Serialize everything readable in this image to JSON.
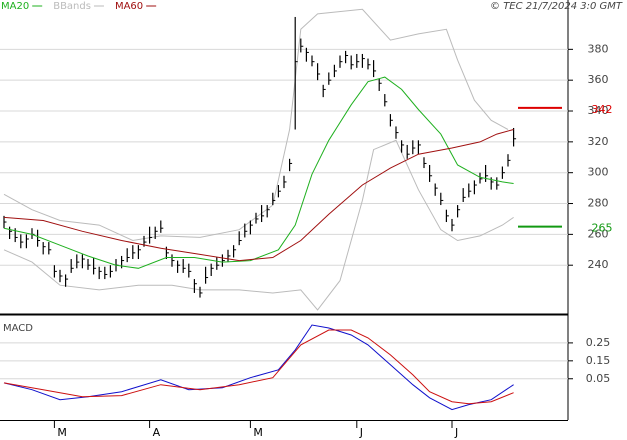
{
  "chart_data": [
    {
      "type": "ohlc",
      "annotation": "© TEC 21/7/2024 3:0 GMT",
      "categories": [
        null,
        null,
        null,
        null,
        null,
        null,
        null,
        null,
        null,
        "M",
        null,
        null,
        null,
        null,
        null,
        null,
        null,
        null,
        null,
        null,
        null,
        null,
        null,
        null,
        null,
        null,
        "A",
        null,
        null,
        null,
        null,
        null,
        null,
        null,
        null,
        null,
        null,
        null,
        null,
        null,
        null,
        null,
        null,
        null,
        "M",
        null,
        null,
        null,
        null,
        null,
        null,
        null,
        null,
        null,
        null,
        null,
        null,
        null,
        null,
        null,
        null,
        null,
        null,
        "J",
        null,
        null,
        null,
        null,
        null,
        null,
        null,
        null,
        null,
        null,
        null,
        null,
        null,
        null,
        null,
        null,
        "J",
        null,
        null,
        null,
        null,
        null,
        null,
        null,
        null,
        null,
        null,
        null
      ],
      "high": [
        272,
        265,
        264,
        260,
        260,
        264,
        263,
        255,
        255,
        240,
        237,
        234,
        244,
        247,
        247,
        244,
        245,
        239,
        239,
        240,
        244,
        246,
        251,
        253,
        253,
        259,
        265,
        265,
        269,
        252,
        247,
        243,
        244,
        241,
        231,
        226,
        239,
        241,
        245,
        247,
        250,
        253,
        262,
        267,
        269,
        274,
        279,
        279,
        287,
        292,
        298,
        309,
        401,
        387,
        381,
        376,
        371,
        357,
        365,
        370,
        376,
        379,
        376,
        377,
        377,
        374,
        373,
        361,
        351,
        338,
        330,
        321,
        318,
        321,
        321,
        310,
        305,
        293,
        287,
        276,
        270,
        279,
        290,
        293,
        295,
        300,
        305,
        297,
        297,
        304,
        312,
        329
      ],
      "low": [
        264,
        257,
        255,
        251,
        251,
        257,
        252,
        247,
        247,
        232,
        229,
        226,
        235,
        238,
        238,
        237,
        234,
        231,
        231,
        232,
        236,
        238,
        242,
        244,
        244,
        252,
        254,
        257,
        261,
        244,
        239,
        235,
        235,
        232,
        222,
        219,
        228,
        233,
        237,
        239,
        242,
        245,
        253,
        258,
        260,
        267,
        268,
        271,
        279,
        284,
        290,
        301,
        328,
        378,
        372,
        369,
        360,
        349,
        357,
        362,
        368,
        371,
        367,
        368,
        368,
        367,
        362,
        353,
        343,
        330,
        322,
        313,
        309,
        312,
        312,
        303,
        294,
        285,
        279,
        268,
        262,
        271,
        281,
        284,
        286,
        293,
        294,
        289,
        289,
        296,
        304,
        317
      ],
      "close": [
        268,
        262,
        258,
        255,
        257,
        260,
        256,
        252,
        250,
        236,
        233,
        231,
        238,
        242,
        244,
        240,
        238,
        236,
        234,
        236,
        240,
        243,
        245,
        248,
        250,
        255,
        258,
        262,
        264,
        248,
        243,
        240,
        238,
        236,
        228,
        222,
        232,
        238,
        240,
        243,
        246,
        250,
        256,
        262,
        266,
        270,
        272,
        276,
        282,
        288,
        294,
        306,
        372,
        382,
        378,
        372,
        364,
        354,
        360,
        366,
        372,
        376,
        370,
        372,
        374,
        370,
        366,
        358,
        346,
        334,
        326,
        318,
        312,
        316,
        318,
        306,
        298,
        290,
        282,
        272,
        266,
        276,
        284,
        288,
        292,
        296,
        298,
        294,
        292,
        300,
        308,
        322
      ],
      "bar_color": "#000000",
      "series": [
        {
          "name": "MA20",
          "color": "#1fb01f",
          "x": [
            0,
            5,
            10,
            15,
            20,
            24,
            29,
            34,
            39,
            44,
            49,
            52,
            55,
            58,
            62,
            65,
            68,
            71,
            74,
            78,
            81,
            85,
            89,
            91
          ],
          "values": [
            264,
            260,
            253,
            246,
            240,
            238,
            245,
            245,
            242,
            243,
            250,
            266,
            299,
            321,
            344,
            359,
            362,
            354,
            341,
            325,
            305,
            297,
            294,
            293
          ]
        },
        {
          "name": "MA60",
          "color": "#a01010",
          "x": [
            0,
            7,
            14,
            21,
            28,
            35,
            42,
            48,
            53,
            58,
            64,
            69,
            74,
            80,
            85,
            88,
            91
          ],
          "values": [
            271,
            269,
            262,
            256,
            251,
            247,
            243,
            245,
            256,
            273,
            292,
            303,
            312,
            316,
            320,
            325,
            328
          ]
        }
      ],
      "bands": {
        "name": "BBands",
        "color": "#bbbbbb",
        "x_upper": [
          0,
          5,
          10,
          17,
          23,
          28,
          35,
          42,
          48,
          51,
          53,
          56,
          64,
          69,
          74,
          79,
          81,
          84,
          87,
          90
        ],
        "upper": [
          286,
          276,
          269,
          266,
          256,
          259,
          258,
          263,
          279,
          328,
          393,
          403,
          406,
          386,
          390,
          393,
          373,
          347,
          334,
          328
        ],
        "x_lower": [
          0,
          5,
          10,
          17,
          24,
          30,
          35,
          42,
          48,
          53,
          56,
          60,
          64,
          66,
          70,
          74,
          78,
          81,
          85,
          89,
          91
        ],
        "lower": [
          250,
          242,
          227,
          224,
          227,
          227,
          224,
          224,
          222,
          224,
          211,
          230,
          282,
          315,
          321,
          289,
          263,
          256,
          259,
          266,
          271
        ]
      },
      "levels": [
        {
          "value": 342,
          "color": "#dd0000"
        },
        {
          "value": 265,
          "color": "#119911"
        }
      ],
      "ylim": [
        209,
        412
      ],
      "yticks": [
        240,
        260,
        280,
        300,
        320,
        340,
        360,
        380
      ],
      "grid": true
    },
    {
      "type": "line",
      "title": "MACD",
      "series": [
        {
          "color": "#1010cc",
          "x": [
            0,
            5,
            10,
            15,
            21,
            28,
            33,
            39,
            44,
            49,
            52,
            55,
            58,
            62,
            65,
            69,
            73,
            76,
            80,
            83,
            87,
            91
          ],
          "values": [
            0.027,
            -0.011,
            -0.067,
            -0.05,
            -0.022,
            0.044,
            -0.011,
            0,
            0.056,
            0.1,
            0.211,
            0.35,
            0.333,
            0.294,
            0.239,
            0.128,
            0.017,
            -0.056,
            -0.122,
            -0.094,
            -0.067,
            0.017
          ]
        },
        {
          "color": "#cc1010",
          "x": [
            0,
            7,
            14,
            21,
            28,
            35,
            42,
            48,
            53,
            58,
            62,
            65,
            69,
            73,
            76,
            80,
            83,
            87,
            91
          ],
          "values": [
            0.027,
            -0.011,
            -0.05,
            -0.044,
            0.017,
            -0.011,
            0.017,
            0.056,
            0.239,
            0.322,
            0.322,
            0.278,
            0.183,
            0.072,
            -0.022,
            -0.078,
            -0.089,
            -0.078,
            -0.028
          ]
        }
      ],
      "ylim": [
        -0.18,
        0.4
      ],
      "yticks": [
        0.25,
        0.15,
        0.05
      ],
      "grid": true
    }
  ]
}
